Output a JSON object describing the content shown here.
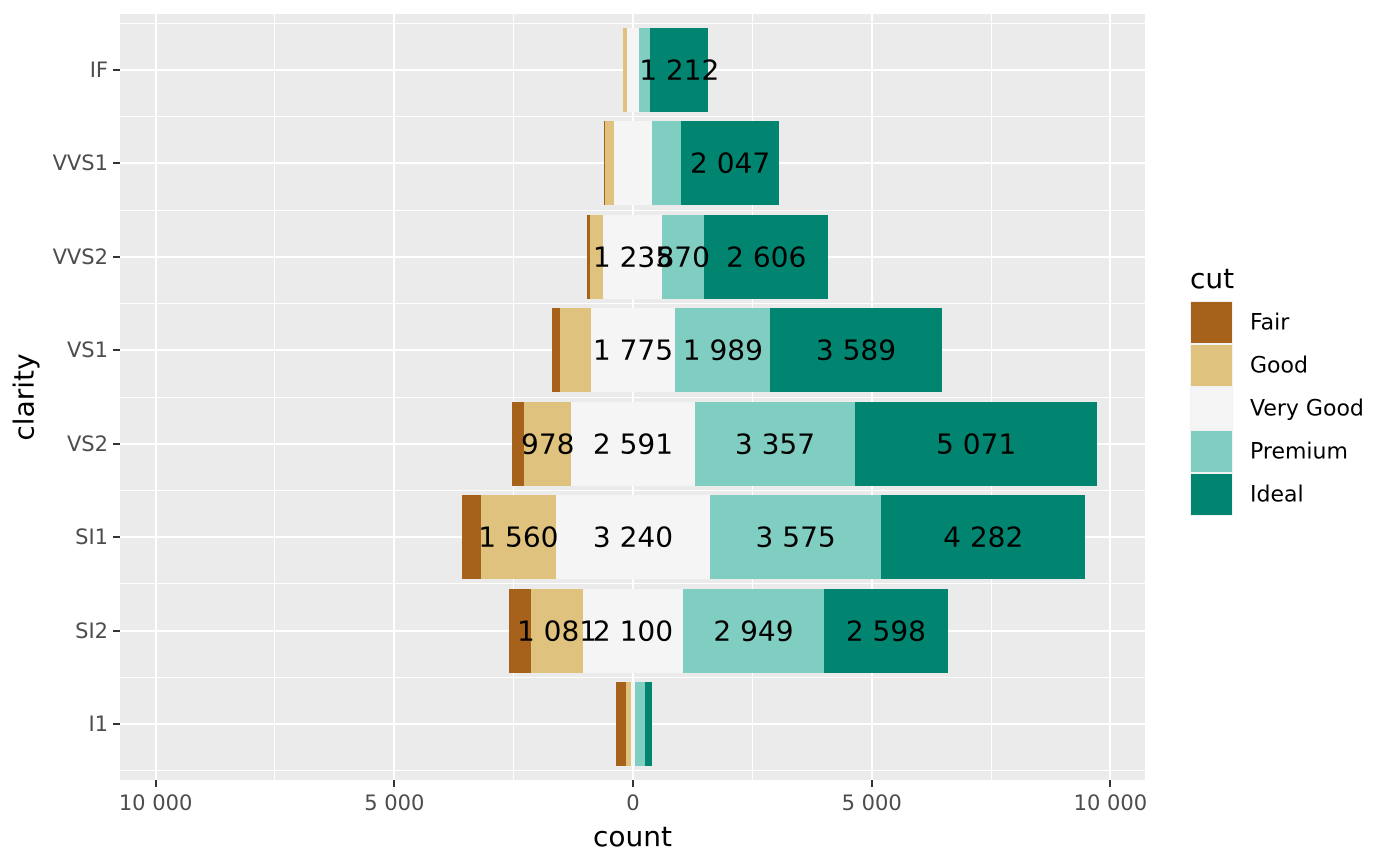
{
  "figure": {
    "background": "#FFFFFF"
  },
  "panel": {
    "background": "#EBEBEB",
    "grid_color": "#FFFFFF",
    "tick_color": "#333333",
    "axis_text_color": "#4D4D4D",
    "title_color": "#000000"
  },
  "axes": {
    "x": {
      "title": "count",
      "tick_values": [
        -10000,
        -5000,
        0,
        5000,
        10000
      ],
      "tick_labels": [
        "10 000",
        "5 000",
        "0",
        "5 000",
        "10 000"
      ],
      "minor_tick_values": [
        -7500,
        -2500,
        2500,
        7500
      ],
      "range": [
        -10745,
        10725
      ]
    },
    "y": {
      "title": "clarity",
      "categories": [
        "IF",
        "VVS1",
        "VVS2",
        "VS1",
        "VS2",
        "SI1",
        "SI2",
        "I1"
      ]
    }
  },
  "legend": {
    "title": "cut",
    "entries": [
      {
        "label": "Fair",
        "color": "#A6611A"
      },
      {
        "label": "Good",
        "color": "#DFC27D"
      },
      {
        "label": "Very Good",
        "color": "#F5F5F5"
      },
      {
        "label": "Premium",
        "color": "#80CDC1"
      },
      {
        "label": "Ideal",
        "color": "#018571"
      }
    ]
  },
  "chart_data": {
    "type": "bar",
    "variant": "diverging_stacked",
    "title": "",
    "xlabel": "count",
    "ylabel": "clarity",
    "center_series": "Very Good",
    "categories": [
      "IF",
      "VVS1",
      "VVS2",
      "VS1",
      "VS2",
      "SI1",
      "SI2",
      "I1"
    ],
    "series": [
      {
        "name": "Fair",
        "color": "#A6611A",
        "values": [
          9,
          17,
          69,
          170,
          261,
          408,
          466,
          210
        ]
      },
      {
        "name": "Good",
        "color": "#DFC27D",
        "values": [
          71,
          186,
          286,
          648,
          978,
          1560,
          1081,
          96
        ]
      },
      {
        "name": "Very Good",
        "color": "#F5F5F5",
        "values": [
          268,
          789,
          1235,
          1775,
          2591,
          3240,
          2100,
          84
        ]
      },
      {
        "name": "Premium",
        "color": "#80CDC1",
        "values": [
          230,
          616,
          870,
          1989,
          3357,
          3575,
          2949,
          205
        ]
      },
      {
        "name": "Ideal",
        "color": "#018571",
        "values": [
          1212,
          2047,
          2606,
          3589,
          5071,
          4282,
          2598,
          146
        ]
      }
    ],
    "visible_bar_labels": {
      "IF": [
        "1 212"
      ],
      "VVS1": [
        "2 047"
      ],
      "VVS2": [
        "1 235",
        "870",
        "2 606"
      ],
      "VS1": [
        "1 775",
        "1 989",
        "3 589"
      ],
      "VS2": [
        "978",
        "2 591",
        "3 357",
        "5 071"
      ],
      "SI1": [
        "1 560",
        "3 240",
        "3 575",
        "4 282"
      ],
      "SI2": [
        "1 081",
        "2 100",
        "2 949",
        "2 598"
      ],
      "I1": []
    },
    "label_threshold": 800,
    "number_format": "space-thousands",
    "xlim": [
      -10745,
      10725
    ],
    "grid": true,
    "legend_position": "right"
  }
}
